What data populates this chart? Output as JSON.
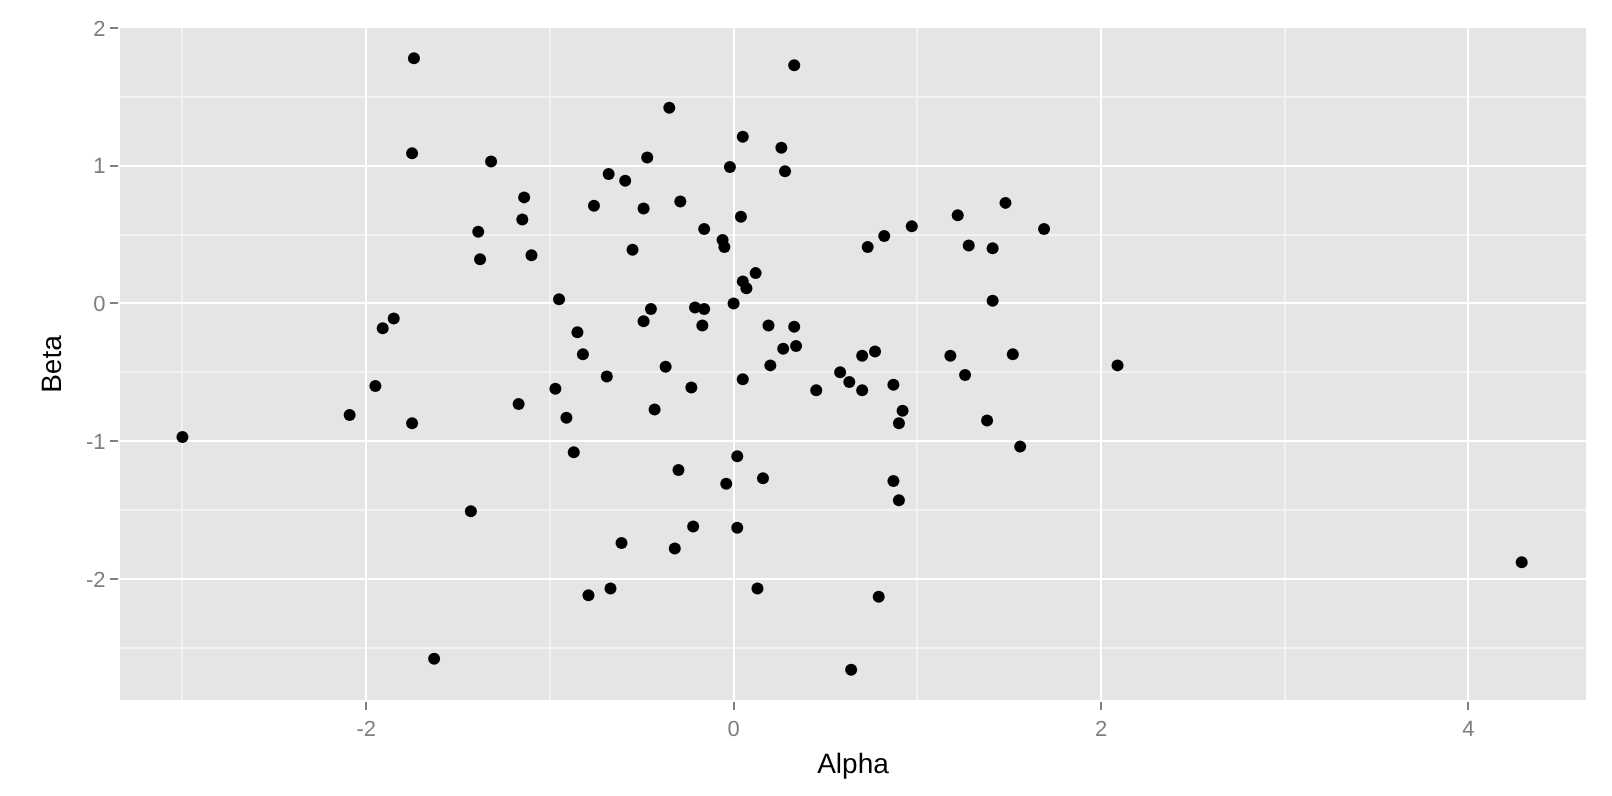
{
  "chart_data": {
    "type": "scatter",
    "xlabel": "Alpha",
    "ylabel": "Beta",
    "xlim": [
      -3.34,
      4.64
    ],
    "ylim": [
      -2.88,
      2.0
    ],
    "xticks": [
      -2,
      0,
      2,
      4
    ],
    "yticks": [
      -2,
      -1,
      0,
      1,
      2
    ],
    "grid": true,
    "marker": "circle",
    "series": [
      {
        "color": "#000000",
        "x": [
          -3.0,
          -2.09,
          -1.95,
          -1.75,
          -1.17,
          -1.43,
          -1.63,
          -0.97,
          -0.91,
          -0.87,
          -0.82,
          -0.69,
          -0.79,
          -0.67,
          -0.61,
          -1.74,
          -1.75,
          -1.32,
          -0.68,
          -1.14,
          -0.76,
          -1.15,
          -1.39,
          -1.38,
          -1.1,
          -0.95,
          -1.85,
          -1.91,
          -0.85,
          0.33,
          -0.35,
          0.05,
          0.26,
          -0.47,
          -0.02,
          0.28,
          -0.59,
          -0.49,
          -0.29,
          -0.16,
          0.04,
          -0.55,
          -0.06,
          -0.05,
          0.12,
          0.05,
          0.07,
          0.0,
          -0.21,
          -0.16,
          -0.45,
          -0.49,
          -0.17,
          0.19,
          0.33,
          0.27,
          0.34,
          0.73,
          0.82,
          0.97,
          1.22,
          1.48,
          1.69,
          1.28,
          1.41,
          1.41,
          0.7,
          0.77,
          1.18,
          1.52,
          -0.37,
          0.2,
          0.05,
          -0.23,
          -0.43,
          0.45,
          0.58,
          0.63,
          0.7,
          0.87,
          0.92,
          0.9,
          1.26,
          1.38,
          1.56,
          0.02,
          -0.3,
          -0.04,
          0.16,
          0.87,
          0.9,
          -0.22,
          0.02,
          -0.32,
          0.13,
          0.79,
          0.64,
          2.09,
          4.29
        ],
        "values": [
          -0.97,
          -0.81,
          -0.6,
          -0.87,
          -0.73,
          -1.51,
          -2.58,
          -0.62,
          -0.83,
          -1.08,
          -0.37,
          -0.53,
          -2.12,
          -2.07,
          -1.74,
          1.78,
          1.09,
          1.03,
          0.94,
          0.77,
          0.71,
          0.61,
          0.52,
          0.32,
          0.35,
          0.03,
          -0.11,
          -0.18,
          -0.21,
          1.73,
          1.42,
          1.21,
          1.13,
          1.06,
          0.99,
          0.96,
          0.89,
          0.69,
          0.74,
          0.54,
          0.63,
          0.39,
          0.46,
          0.41,
          0.22,
          0.16,
          0.11,
          0.0,
          -0.03,
          -0.04,
          -0.04,
          -0.13,
          -0.16,
          -0.16,
          -0.17,
          -0.33,
          -0.31,
          0.41,
          0.49,
          0.56,
          0.64,
          0.73,
          0.54,
          0.42,
          0.4,
          0.02,
          -0.38,
          -0.35,
          -0.38,
          -0.37,
          -0.46,
          -0.45,
          -0.55,
          -0.61,
          -0.77,
          -0.63,
          -0.5,
          -0.57,
          -0.63,
          -0.59,
          -0.78,
          -0.87,
          -0.52,
          -0.85,
          -1.04,
          -1.11,
          -1.21,
          -1.31,
          -1.27,
          -1.29,
          -1.43,
          -1.62,
          -1.63,
          -1.78,
          -2.07,
          -2.13,
          -2.66,
          -0.45,
          -1.88
        ]
      }
    ]
  }
}
